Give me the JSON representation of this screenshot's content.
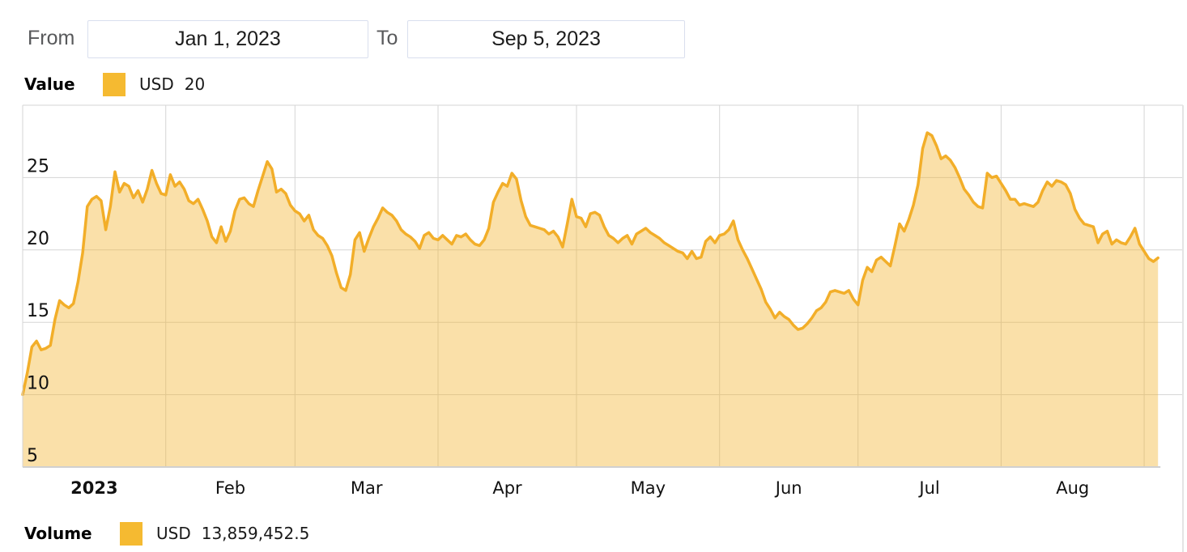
{
  "header": {
    "from_label": "From",
    "from_value": "Jan 1, 2023",
    "to_label": "To",
    "to_value": "Sep 5, 2023"
  },
  "value_legend": {
    "label": "Value",
    "currency": "USD",
    "amount": "20"
  },
  "volume_legend": {
    "label": "Volume",
    "currency": "USD",
    "amount": "13,859,452.5"
  },
  "colors": {
    "swatch": "#F5BA31",
    "line": "#F2AE29",
    "fill": "rgba(243,178,41,0.40)",
    "grid": "#d5d5d5",
    "axis_text": "#111111"
  },
  "chart_data": {
    "type": "area",
    "series_name": "Value",
    "currency": "USD",
    "x_start_date": "2023-01-01",
    "x_end_date": "2023-09-05",
    "x_unit": "day",
    "x_tick_labels": [
      "2023",
      "Feb",
      "Mar",
      "Apr",
      "May",
      "Jun",
      "Jul",
      "Aug"
    ],
    "month_lengths": [
      31,
      28,
      31,
      30,
      31,
      30,
      31,
      31
    ],
    "y_ticks": [
      5,
      10,
      15,
      20,
      25
    ],
    "ylim": [
      5,
      30
    ],
    "grid": true,
    "legend_position": "top-left",
    "values_daily": [
      10.0,
      11.5,
      13.3,
      13.7,
      13.1,
      13.2,
      13.4,
      15.2,
      16.5,
      16.2,
      16.0,
      16.3,
      17.8,
      19.8,
      23.0,
      23.5,
      23.7,
      23.4,
      21.4,
      23.0,
      25.4,
      24.0,
      24.6,
      24.4,
      23.6,
      24.1,
      23.3,
      24.2,
      25.5,
      24.6,
      23.9,
      23.8,
      25.2,
      24.4,
      24.7,
      24.2,
      23.4,
      23.2,
      23.5,
      22.8,
      22.0,
      20.9,
      20.5,
      21.6,
      20.6,
      21.3,
      22.7,
      23.5,
      23.6,
      23.2,
      23.0,
      24.1,
      25.1,
      26.1,
      25.6,
      24.0,
      24.2,
      23.9,
      23.1,
      22.7,
      22.5,
      22.0,
      22.4,
      21.4,
      21.0,
      20.8,
      20.3,
      19.6,
      18.4,
      17.4,
      17.2,
      18.3,
      20.7,
      21.2,
      19.9,
      20.8,
      21.6,
      22.2,
      22.9,
      22.6,
      22.4,
      22.0,
      21.4,
      21.1,
      20.9,
      20.6,
      20.1,
      21.0,
      21.2,
      20.8,
      20.7,
      21.0,
      20.7,
      20.4,
      21.0,
      20.9,
      21.1,
      20.7,
      20.4,
      20.3,
      20.7,
      21.5,
      23.3,
      24.0,
      24.6,
      24.4,
      25.3,
      24.9,
      23.4,
      22.3,
      21.7,
      21.6,
      21.5,
      21.4,
      21.1,
      21.3,
      20.9,
      20.2,
      21.8,
      23.5,
      22.3,
      22.2,
      21.6,
      22.5,
      22.6,
      22.4,
      21.6,
      21.0,
      20.8,
      20.5,
      20.8,
      21.0,
      20.4,
      21.1,
      21.3,
      21.5,
      21.2,
      21.0,
      20.8,
      20.5,
      20.3,
      20.1,
      19.9,
      19.8,
      19.4,
      19.9,
      19.4,
      19.5,
      20.6,
      20.9,
      20.5,
      21.0,
      21.1,
      21.4,
      22.0,
      20.7,
      20.0,
      19.4,
      18.7,
      18.0,
      17.3,
      16.4,
      15.9,
      15.3,
      15.7,
      15.4,
      15.2,
      14.8,
      14.5,
      14.6,
      14.9,
      15.3,
      15.8,
      16.0,
      16.4,
      17.1,
      17.2,
      17.1,
      17.0,
      17.2,
      16.6,
      16.2,
      17.9,
      18.8,
      18.5,
      19.3,
      19.5,
      19.2,
      18.9,
      20.3,
      21.8,
      21.3,
      22.1,
      23.1,
      24.5,
      27.0,
      28.1,
      27.9,
      27.2,
      26.3,
      26.5,
      26.2,
      25.7,
      25.0,
      24.2,
      23.8,
      23.3,
      23.0,
      22.9,
      25.3,
      25.0,
      25.1,
      24.6,
      24.1,
      23.5,
      23.5,
      23.1,
      23.2,
      23.1,
      23.0,
      23.3,
      24.1,
      24.7,
      24.4,
      24.8,
      24.7,
      24.5,
      23.9,
      22.8,
      22.2,
      21.8,
      21.7,
      21.6,
      20.5,
      21.1,
      21.3,
      20.4,
      20.7,
      20.5,
      20.4,
      20.9,
      21.5,
      20.4,
      19.9,
      19.4,
      19.2,
      19.45
    ]
  }
}
